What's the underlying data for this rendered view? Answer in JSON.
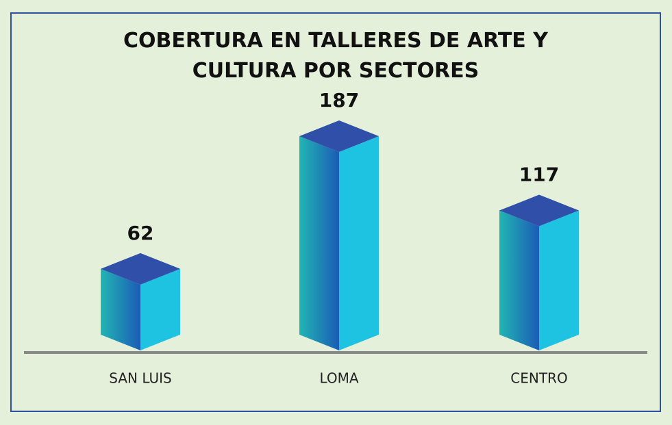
{
  "chart_data": {
    "type": "bar3d",
    "title": "COBERTURA EN TALLERES DE ARTE Y CULTURA POR SECTORES",
    "categories": [
      "SAN LUIS",
      "LOMA",
      "CENTRO"
    ],
    "values": [
      62,
      187,
      117
    ]
  }
}
